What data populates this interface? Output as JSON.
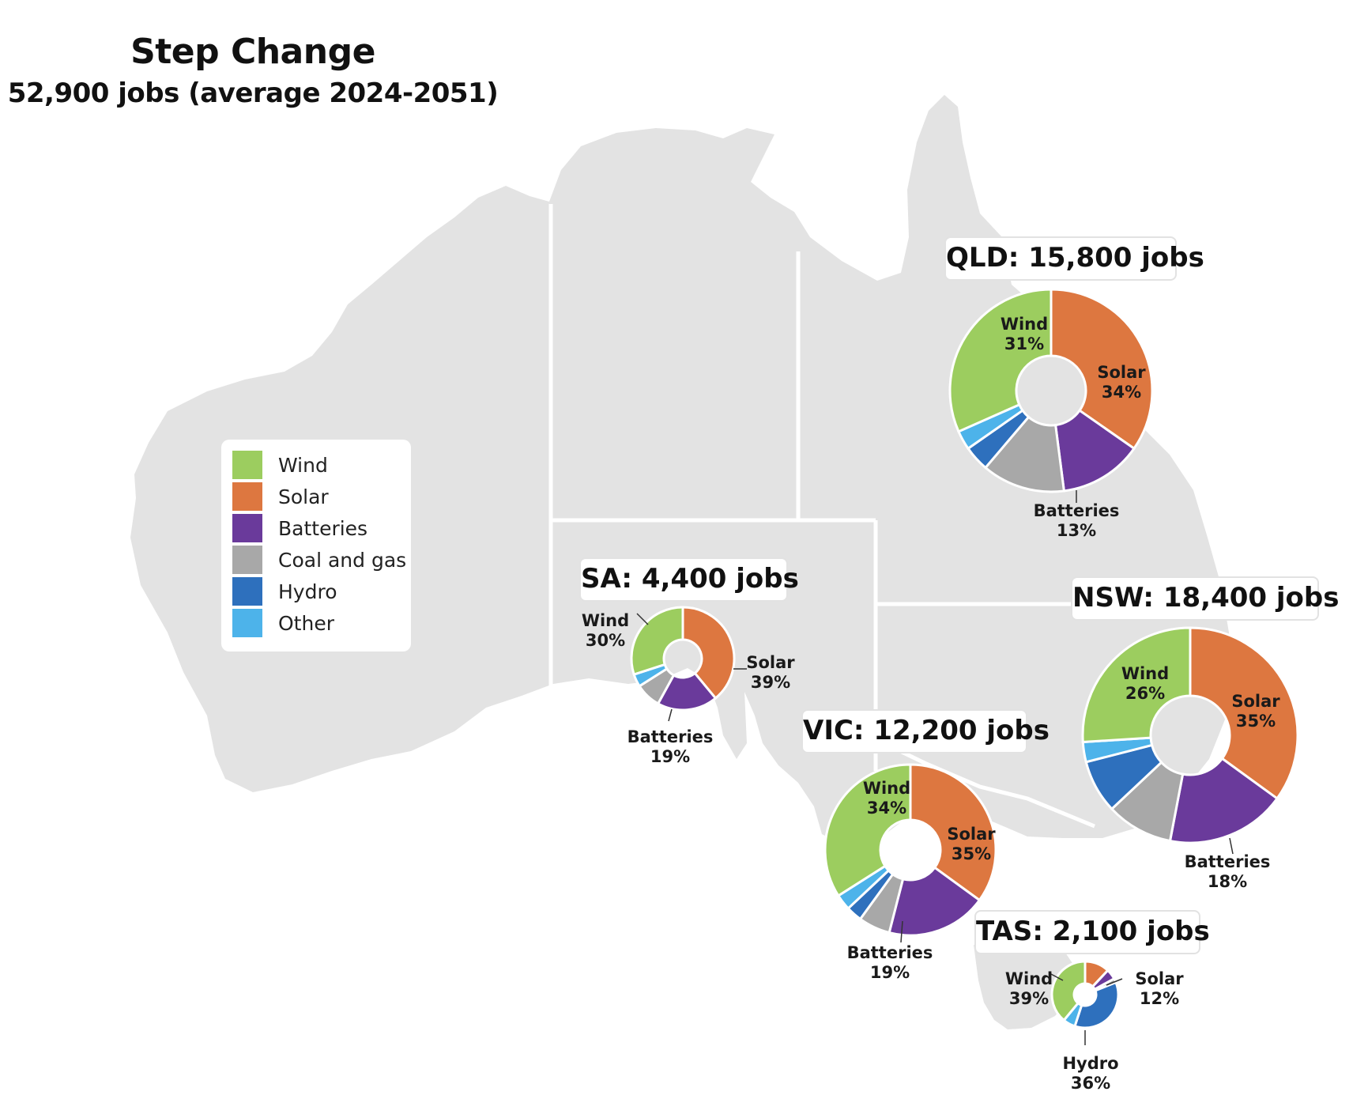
{
  "title": "Step Change",
  "subtitle": "52,900 jobs (average 2024-2051)",
  "colors": {
    "land": "#e3e3e3",
    "border": "#ffffff",
    "Wind": "#9ccd5f",
    "Solar": "#dd7740",
    "Batteries": "#6a3a9b",
    "Coal and gas": "#a8a8a8",
    "Hydro": "#2e70bd",
    "Other": "#4db3ea"
  },
  "legend": {
    "items": [
      {
        "label": "Wind",
        "color": "#9ccd5f"
      },
      {
        "label": "Solar",
        "color": "#dd7740"
      },
      {
        "label": "Batteries",
        "color": "#6a3a9b"
      },
      {
        "label": "Coal and gas",
        "color": "#a8a8a8"
      },
      {
        "label": "Hydro",
        "color": "#2e70bd"
      },
      {
        "label": "Other",
        "color": "#4db3ea"
      }
    ]
  },
  "chart_data": {
    "type": "pie",
    "categories": [
      "Wind",
      "Solar",
      "Batteries",
      "Coal and gas",
      "Hydro",
      "Other"
    ],
    "regions": [
      {
        "state": "QLD",
        "label": "QLD: 15,800 jobs",
        "jobs": 15800,
        "values": [
          31,
          34,
          13,
          13,
          4,
          3
        ],
        "annotations": [
          {
            "name": "Wind",
            "value": "31%"
          },
          {
            "name": "Solar",
            "value": "34%"
          },
          {
            "name": "Batteries",
            "value": "13%"
          }
        ]
      },
      {
        "state": "NSW",
        "label": "NSW: 18,400 jobs",
        "jobs": 18400,
        "values": [
          26,
          35,
          18,
          10,
          8,
          3
        ],
        "annotations": [
          {
            "name": "Wind",
            "value": "26%"
          },
          {
            "name": "Solar",
            "value": "35%"
          },
          {
            "name": "Batteries",
            "value": "18%"
          }
        ]
      },
      {
        "state": "SA",
        "label": "SA: 4,400 jobs",
        "jobs": 4400,
        "values": [
          30,
          39,
          19,
          8,
          0,
          4
        ],
        "annotations": [
          {
            "name": "Wind",
            "value": "30%"
          },
          {
            "name": "Solar",
            "value": "39%"
          },
          {
            "name": "Batteries",
            "value": "19%"
          }
        ]
      },
      {
        "state": "VIC",
        "label": "VIC: 12,200 jobs",
        "jobs": 12200,
        "values": [
          34,
          35,
          19,
          6,
          3,
          3
        ],
        "annotations": [
          {
            "name": "Wind",
            "value": "34%"
          },
          {
            "name": "Solar",
            "value": "35%"
          },
          {
            "name": "Batteries",
            "value": "19%"
          }
        ]
      },
      {
        "state": "TAS",
        "label": "TAS: 2,100 jobs",
        "jobs": 2100,
        "values": [
          39,
          12,
          5,
          2,
          36,
          6
        ],
        "annotations": [
          {
            "name": "Wind",
            "value": "39%"
          },
          {
            "name": "Solar",
            "value": "12%"
          },
          {
            "name": "Hydro",
            "value": "36%"
          }
        ]
      }
    ]
  }
}
